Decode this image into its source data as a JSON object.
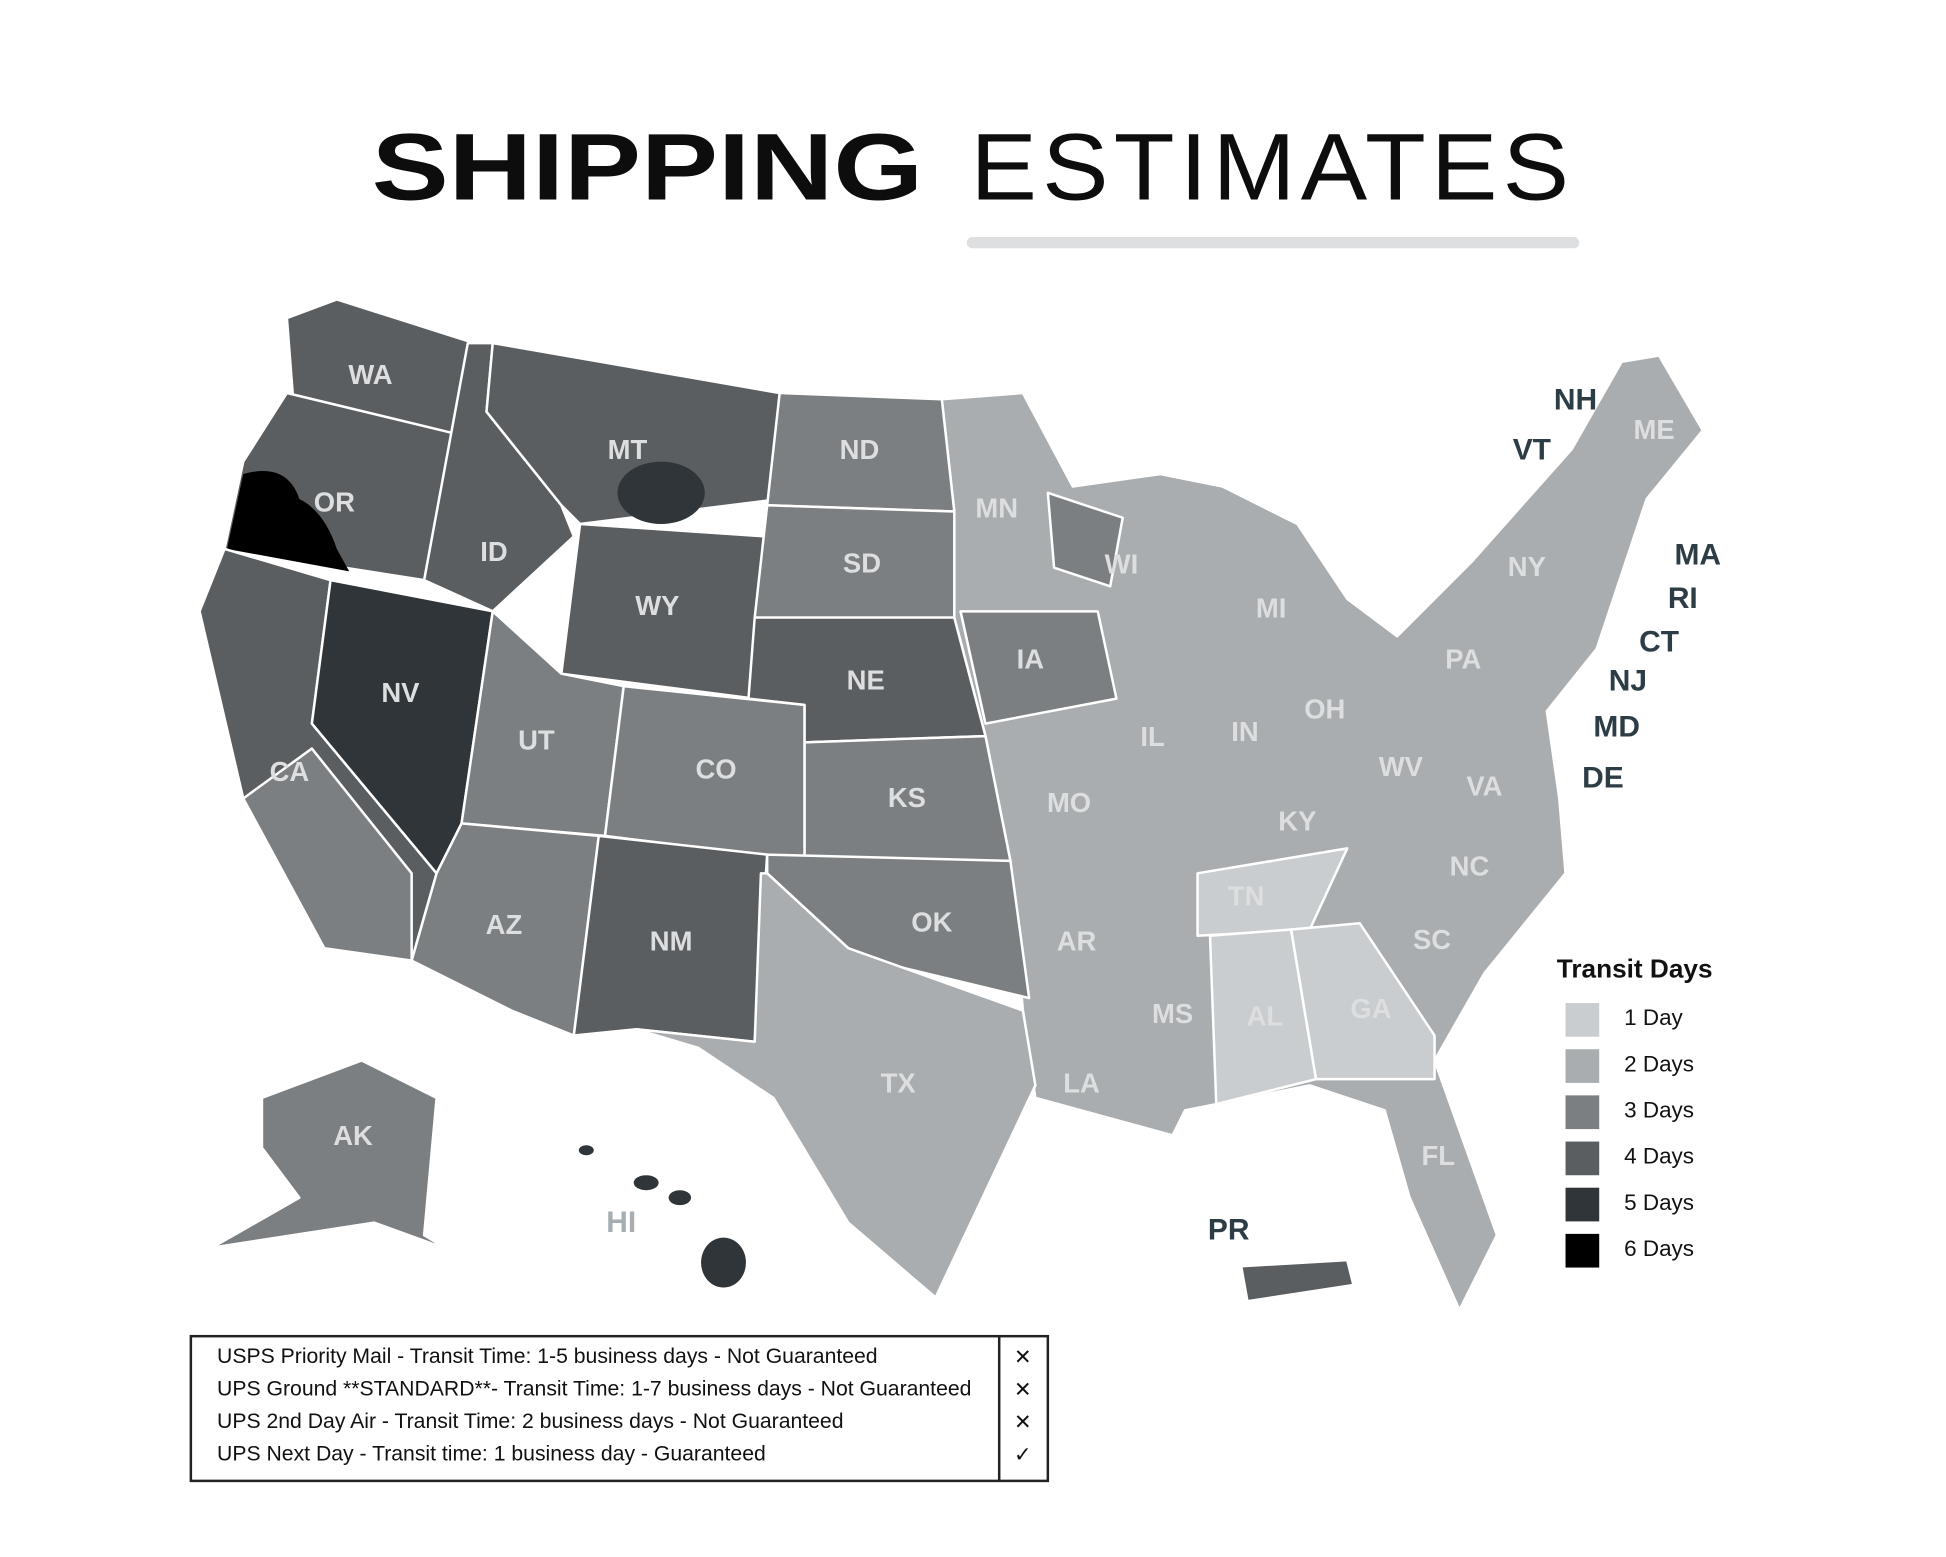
{
  "header": {
    "title_bold": "SHIPPING",
    "title_light": "ESTIMATES"
  },
  "states": [
    "WA",
    "OR",
    "ID",
    "MT",
    "WY",
    "NV",
    "CA",
    "UT",
    "CO",
    "AZ",
    "NM",
    "ND",
    "SD",
    "NE",
    "KS",
    "OK",
    "TX",
    "MN",
    "IA",
    "MO",
    "AR",
    "LA",
    "WI",
    "IL",
    "MS",
    "MI",
    "IN",
    "KY",
    "TN",
    "AL",
    "OH",
    "GA",
    "FL",
    "SC",
    "NC",
    "VA",
    "WV",
    "PA",
    "NY",
    "ME",
    "AK"
  ],
  "callout_states": [
    "NH",
    "VT",
    "MA",
    "RI",
    "CT",
    "NJ",
    "MD",
    "DE",
    "PR"
  ],
  "territory": "HI",
  "legend": {
    "title": "Transit Days",
    "items": [
      {
        "label": "1 Day",
        "color": "#c9cdcf"
      },
      {
        "label": "2 Days",
        "color": "#a9adaf"
      },
      {
        "label": "3 Days",
        "color": "#7b7f81"
      },
      {
        "label": "4 Days",
        "color": "#5a5e61"
      },
      {
        "label": "5 Days",
        "color": "#2f3538"
      },
      {
        "label": "6 Days",
        "color": "#000000"
      }
    ]
  },
  "table": {
    "rows": [
      {
        "text": "USPS Priority Mail - Transit Time: 1-5 business days - Not Guaranteed",
        "mark": "✕"
      },
      {
        "text": "UPS Ground **STANDARD**-  Transit Time: 1-7 business days - Not Guaranteed",
        "mark": "✕"
      },
      {
        "text": "UPS 2nd Day Air - Transit Time: 2 business days - Not Guaranteed",
        "mark": "✕"
      },
      {
        "text": "UPS Next Day - Transit time: 1 business day - Guaranteed",
        "mark": "✓"
      }
    ]
  }
}
